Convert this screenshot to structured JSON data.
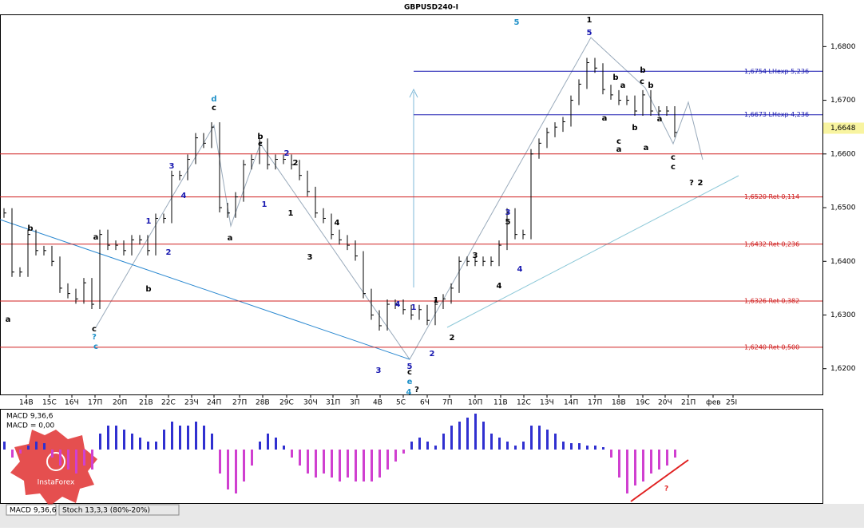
{
  "title": "GBPUSD240-I",
  "price_axis": {
    "ylim": [
      1.6152,
      1.686
    ],
    "yticks": [
      {
        "value": 1.68,
        "label": "1,6800"
      },
      {
        "value": 1.67,
        "label": "1,6700"
      },
      {
        "value": 1.66,
        "label": "1,6600"
      },
      {
        "value": 1.65,
        "label": "1,6500"
      },
      {
        "value": 1.64,
        "label": "1,6400"
      },
      {
        "value": 1.63,
        "label": "1,6300"
      },
      {
        "value": 1.62,
        "label": "1,6200"
      }
    ],
    "current_price": {
      "value": 1.6648,
      "label": "1,6648"
    }
  },
  "levels": [
    {
      "value": 1.6754,
      "label": "1,6754 LHexp 5,236",
      "color": "#1818b0"
    },
    {
      "value": 1.6673,
      "label": "1,6673 LHexp 4,236",
      "color": "#1818b0"
    },
    {
      "value": 1.66,
      "color": "#d02020"
    },
    {
      "value": 1.652,
      "label": "1,6520 Ret 0,114",
      "color": "#d02020"
    },
    {
      "value": 1.6432,
      "label": "1,6432 Ret 0,236",
      "color": "#d02020"
    },
    {
      "value": 1.6326,
      "label": "1,6326 Ret 0,382",
      "color": "#d02020"
    },
    {
      "value": 1.624,
      "label": "1,6240 Ret 0,500",
      "color": "#d02020"
    }
  ],
  "dates": [
    "14В",
    "15С",
    "16Ч",
    "17П",
    "20П",
    "21В",
    "22С",
    "23Ч",
    "24П",
    "27П",
    "28В",
    "29С",
    "30Ч",
    "31П",
    "3П",
    "4В",
    "5С",
    "6Ч",
    "7П",
    "10П",
    "11В",
    "12С",
    "13Ч",
    "14П",
    "17П",
    "18В",
    "19С",
    "20Ч",
    "21П",
    "фев",
    "25І"
  ],
  "closes": [
    1.649,
    1.638,
    1.638,
    1.645,
    1.642,
    1.642,
    1.64,
    1.635,
    1.634,
    1.633,
    1.636,
    1.632,
    1.645,
    1.643,
    1.643,
    1.642,
    1.644,
    1.644,
    1.642,
    1.648,
    1.648,
    1.656,
    1.656,
    1.659,
    1.663,
    1.662,
    1.665,
    1.65,
    1.649,
    1.652,
    1.658,
    1.659,
    1.662,
    1.658,
    1.659,
    1.659,
    1.658,
    1.656,
    1.653,
    1.649,
    1.648,
    1.645,
    1.644,
    1.643,
    1.641,
    1.634,
    1.63,
    1.628,
    1.632,
    1.632,
    1.631,
    1.63,
    1.631,
    1.629,
    1.632,
    1.633,
    1.635,
    1.64,
    1.64,
    1.64,
    1.64,
    1.64,
    1.643,
    1.649,
    1.645,
    1.645,
    1.66,
    1.662,
    1.664,
    1.665,
    1.666,
    1.67,
    1.673,
    1.677,
    1.676,
    1.672,
    1.671,
    1.67,
    1.67,
    1.668,
    1.671,
    1.668,
    1.668,
    1.668,
    1.664
  ],
  "macd": {
    "label": "MACD 9,36,6",
    "value_label": "MACD = 0,00",
    "ylim": [
      -0.006,
      0.006
    ],
    "values": [
      0.001,
      -0.001,
      -0.0005,
      0.0005,
      0.001,
      0.0008,
      -0.001,
      -0.002,
      -0.0025,
      -0.003,
      -0.002,
      -0.0025,
      0.002,
      0.003,
      0.003,
      0.0025,
      0.002,
      0.0015,
      0.001,
      0.001,
      0.0025,
      0.0035,
      0.003,
      0.003,
      0.0035,
      0.003,
      0.002,
      -0.003,
      -0.005,
      -0.0055,
      -0.004,
      -0.002,
      0.001,
      0.002,
      0.0015,
      0.0005,
      -0.001,
      -0.002,
      -0.003,
      -0.0035,
      -0.003,
      -0.0035,
      -0.004,
      -0.0035,
      -0.004,
      -0.004,
      -0.004,
      -0.0035,
      -0.0025,
      -0.0015,
      -0.0005,
      0.001,
      0.0015,
      0.001,
      0.0005,
      0.002,
      0.003,
      0.0035,
      0.004,
      0.0045,
      0.0035,
      0.002,
      0.0015,
      0.001,
      0.0005,
      0.001,
      0.003,
      0.003,
      0.0025,
      0.002,
      0.001,
      0.0008,
      0.0008,
      0.0005,
      0.0005,
      0.0003,
      -0.001,
      -0.0035,
      -0.0055,
      -0.0045,
      -0.004,
      -0.003,
      -0.0025,
      -0.002,
      -0.001
    ]
  },
  "waves_black": [
    "a",
    "b",
    "a",
    "c",
    "a",
    "b",
    "c",
    "2",
    "1",
    "4",
    "3",
    "1",
    "3",
    "4",
    "2",
    "c",
    "?",
    "1",
    "b",
    "a",
    "c",
    "c",
    "?",
    "2",
    "b",
    "a",
    "c",
    "b",
    "a",
    "b",
    "a",
    "a",
    "b",
    "c",
    "c",
    "5"
  ],
  "waves_blue": [
    "3",
    "4",
    "1",
    "2",
    "2",
    "1",
    "3",
    "4",
    "1",
    "2",
    "5",
    "3",
    "4",
    "5"
  ],
  "waves_teal": [
    "c",
    "d",
    "5",
    "e",
    "4",
    "?"
  ],
  "tabs": [
    "MACD 9,36,6",
    "Stoch 13,3,3 (80%-20%)"
  ],
  "watermark": "InstaForex"
}
